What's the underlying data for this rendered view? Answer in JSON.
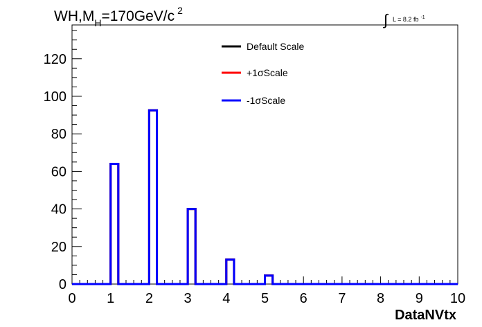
{
  "chart_data": {
    "type": "bar",
    "title_main": "WH,M",
    "title_sub": "H",
    "title_rest": "=170GeV/c",
    "title_sup": "2",
    "lumi_symbol": "∫",
    "lumi_text": "L = 8.2 fb",
    "lumi_sup": "-1",
    "xlabel": "DataNVtx",
    "ylabel": "",
    "xlim": [
      0,
      10
    ],
    "ylim": [
      0,
      138
    ],
    "xticks": [
      "0",
      "1",
      "2",
      "3",
      "4",
      "5",
      "6",
      "7",
      "8",
      "9",
      "10"
    ],
    "yticks": [
      "0",
      "20",
      "40",
      "60",
      "80",
      "100",
      "120"
    ],
    "bin_width": 0.2,
    "series": [
      {
        "name": "Default Scale",
        "color": "#000000",
        "bins": [
          {
            "x": 1,
            "value": 64
          },
          {
            "x": 2,
            "value": 92.5
          },
          {
            "x": 3,
            "value": 40
          },
          {
            "x": 4,
            "value": 13
          },
          {
            "x": 5,
            "value": 4.5
          }
        ]
      },
      {
        "name": "+1σScale",
        "color": "#ff0000",
        "bins": [
          {
            "x": 1,
            "value": 64
          },
          {
            "x": 2,
            "value": 92.5
          },
          {
            "x": 3,
            "value": 40
          },
          {
            "x": 4,
            "value": 13
          },
          {
            "x": 5,
            "value": 4.5
          }
        ]
      },
      {
        "name": "-1σScale",
        "color": "#0000ff",
        "bins": [
          {
            "x": 1,
            "value": 64
          },
          {
            "x": 2,
            "value": 92.5
          },
          {
            "x": 3,
            "value": 40
          },
          {
            "x": 4,
            "value": 13
          },
          {
            "x": 5,
            "value": 4.5
          }
        ]
      }
    ],
    "legend": "top-center"
  }
}
